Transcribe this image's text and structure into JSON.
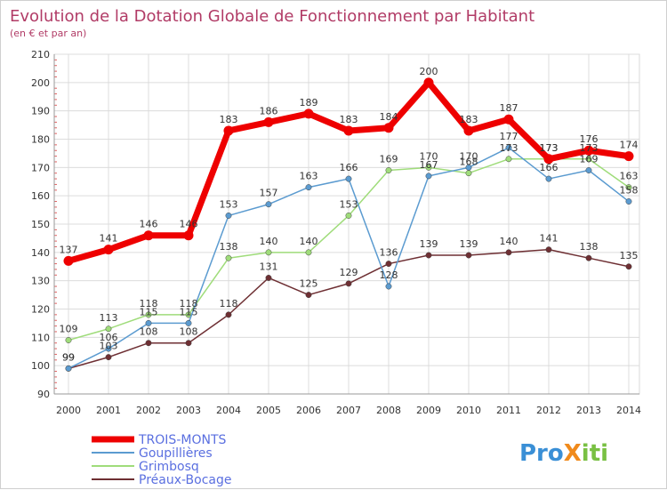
{
  "chart_data": {
    "type": "line",
    "title": "Evolution de la Dotation Globale de Fonctionnement par Habitant",
    "subtitle": "(en € et par an)",
    "xlabel": "",
    "ylabel": "",
    "x": [
      "2000",
      "2001",
      "2002",
      "2003",
      "2004",
      "2005",
      "2006",
      "2007",
      "2008",
      "2009",
      "2010",
      "2011",
      "2012",
      "2013",
      "2014"
    ],
    "y_ticks": [
      "90",
      "100",
      "110",
      "120",
      "130",
      "140",
      "150",
      "160",
      "170",
      "180",
      "190",
      "200",
      "210"
    ],
    "ylim": [
      90,
      210
    ],
    "grid": true,
    "legend_position": "bottom-left",
    "series": [
      {
        "name": "Préaux-Bocage",
        "color": "#6e2f33",
        "values": [
          99,
          103,
          108,
          108,
          118,
          131,
          125,
          129,
          136,
          139,
          139,
          140,
          141,
          138,
          135
        ],
        "labels": [
          "99",
          "103",
          "108",
          "108",
          "118",
          "131",
          "125",
          "129",
          "136",
          "139",
          "139",
          "140",
          "141",
          "138",
          "135"
        ]
      },
      {
        "name": "Grimbosq",
        "color": "#9fdc7a",
        "values": [
          109,
          113,
          118,
          118,
          138,
          140,
          140,
          153,
          169,
          170,
          168,
          173,
          173,
          173,
          163
        ],
        "labels": [
          "109",
          "113",
          "118",
          "118",
          "138",
          "140",
          "140",
          "153",
          "169",
          "170",
          "168",
          "173",
          "173",
          "173",
          "163"
        ]
      },
      {
        "name": "Goupillières",
        "color": "#5b9bd0",
        "values": [
          99,
          106,
          115,
          115,
          153,
          157,
          163,
          166,
          128,
          167,
          170,
          177,
          166,
          169,
          158
        ],
        "labels": [
          "99",
          "106",
          "115",
          "115",
          "153",
          "157",
          "163",
          "166",
          "128",
          "167",
          "170",
          "177",
          "166",
          "169",
          "158"
        ]
      },
      {
        "name": "TROIS-MONTS",
        "color": "#ee0000",
        "values": [
          137,
          141,
          146,
          146,
          183,
          186,
          189,
          183,
          184,
          200,
          183,
          187,
          173,
          176,
          174
        ],
        "labels": [
          "137",
          "141",
          "146",
          "146",
          "183",
          "186",
          "189",
          "183",
          "184",
          "200",
          "183",
          "187",
          "173",
          "176",
          "174"
        ]
      }
    ]
  },
  "legend": {
    "items": [
      {
        "name": "TROIS-MONTS",
        "color": "#ee0000",
        "text_color": "#5a6fe0"
      },
      {
        "name": "Goupillières",
        "color": "#5b9bd0",
        "text_color": "#5a6fe0"
      },
      {
        "name": "Grimbosq",
        "color": "#9fdc7a",
        "text_color": "#5a6fe0"
      },
      {
        "name": "Préaux-Bocage",
        "color": "#6e2f33",
        "text_color": "#5a6fe0"
      }
    ]
  },
  "logo": {
    "text": "ProXiti"
  }
}
